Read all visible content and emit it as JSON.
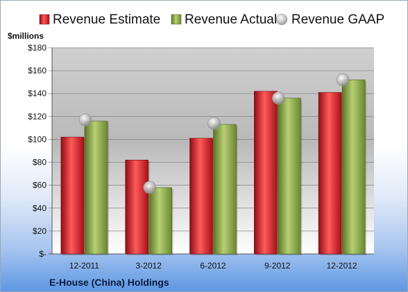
{
  "chart_data": {
    "type": "bar",
    "unit_label": "$millions",
    "company": "E-House (China) Holdings",
    "categories": [
      "12-2011",
      "3-2012",
      "6-2012",
      "9-2012",
      "12-2012"
    ],
    "y_ticks": [
      "$-",
      "$20",
      "$40",
      "$60",
      "$80",
      "$100",
      "$120",
      "$140",
      "$160",
      "$180"
    ],
    "ylim": [
      0,
      180
    ],
    "grid": true,
    "legend_position": "top",
    "series": [
      {
        "name": "Revenue Estimate",
        "kind": "bar",
        "color": "#c8161d",
        "values": [
          102,
          82,
          101,
          142,
          141
        ]
      },
      {
        "name": "Revenue Actual",
        "kind": "bar",
        "color": "#7f9a3a",
        "values": [
          116,
          58,
          113,
          136,
          152
        ]
      },
      {
        "name": "Revenue GAAP",
        "kind": "marker",
        "color": "#b0b0b0",
        "values": [
          117,
          58,
          114,
          136,
          152
        ]
      }
    ]
  }
}
